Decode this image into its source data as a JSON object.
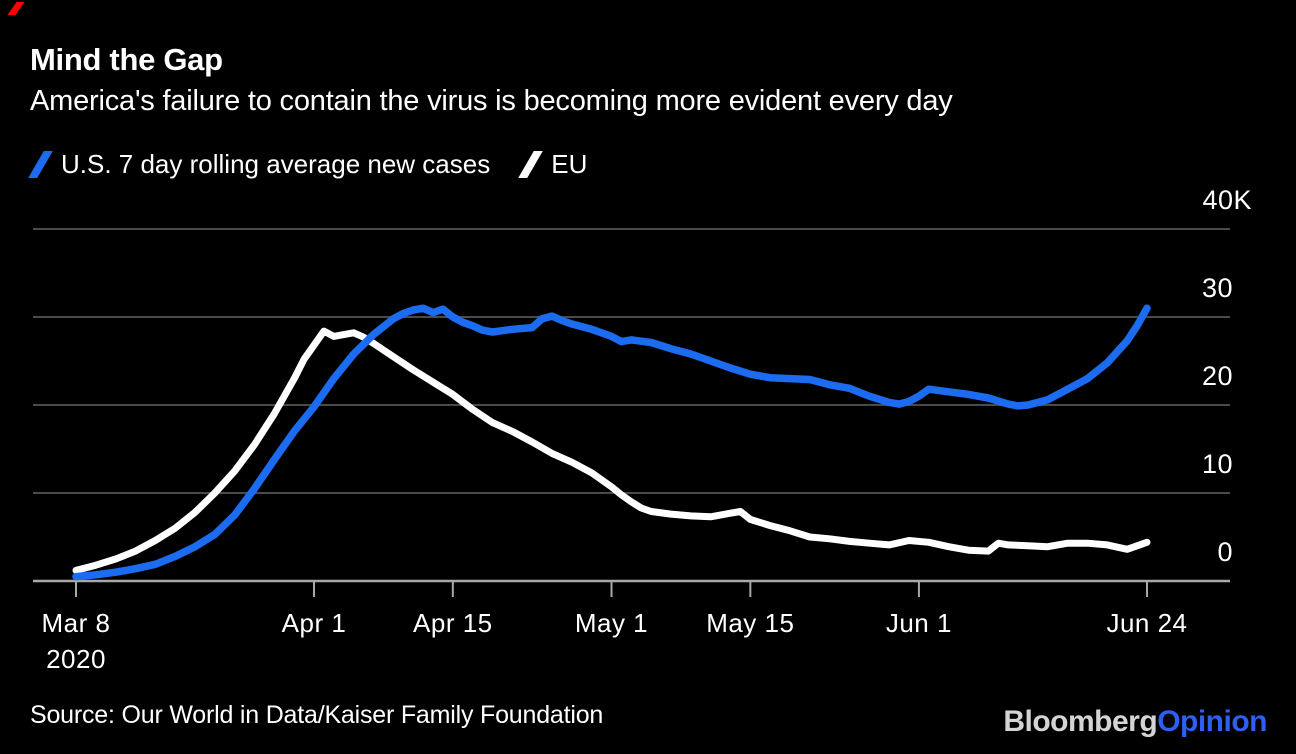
{
  "header": {
    "title": "Mind the Gap",
    "subtitle": "America's failure to contain the virus is becoming more evident every day"
  },
  "legend": {
    "us": {
      "label": "U.S. 7 day rolling average new cases",
      "color": "#1c6cf2"
    },
    "eu": {
      "label": "EU",
      "color": "#ffffff"
    }
  },
  "footer": {
    "source": "Source: Our World in Data/Kaiser Family Foundation",
    "brand": "Bloomberg",
    "brand_suffix": "Opinion"
  },
  "colors": {
    "background": "#000000",
    "text": "#ffffff",
    "us_line": "#1c6cf2",
    "eu_line": "#ffffff",
    "gridline": "#4a4a4a",
    "axis": "#a8a8a8",
    "brand_gray": "#d4d4d4",
    "brand_blue": "#2c5ff2",
    "accent_red": "#ff0000"
  },
  "chart_data": {
    "type": "line",
    "title": "Mind the Gap",
    "subtitle": "America's failure to contain the virus is becoming more evident every day",
    "x_unit": "days since Mar 8, 2020",
    "y_unit": "new cases, thousands",
    "ylim": [
      0,
      40
    ],
    "grid": true,
    "legend_position": "top-left",
    "y_ticks": [
      {
        "value": 40,
        "label": "40K"
      },
      {
        "value": 30,
        "label": "30"
      },
      {
        "value": 20,
        "label": "20"
      },
      {
        "value": 10,
        "label": "10"
      },
      {
        "value": 0,
        "label": "0"
      }
    ],
    "x_ticks": [
      {
        "day": 0,
        "label": "Mar 8",
        "sublabel": "2020"
      },
      {
        "day": 24,
        "label": "Apr 1"
      },
      {
        "day": 38,
        "label": "Apr 15"
      },
      {
        "day": 54,
        "label": "May 1"
      },
      {
        "day": 68,
        "label": "May 15"
      },
      {
        "day": 85,
        "label": "Jun 1"
      },
      {
        "day": 108,
        "label": "Jun 24"
      }
    ],
    "series": [
      {
        "name": "EU",
        "color": "#ffffff",
        "points": [
          [
            0,
            1.2
          ],
          [
            2,
            1.8
          ],
          [
            4,
            2.5
          ],
          [
            6,
            3.4
          ],
          [
            8,
            4.6
          ],
          [
            10,
            6.0
          ],
          [
            12,
            7.8
          ],
          [
            14,
            10.0
          ],
          [
            16,
            12.5
          ],
          [
            18,
            15.5
          ],
          [
            20,
            19.0
          ],
          [
            22,
            23.0
          ],
          [
            23,
            25.2
          ],
          [
            24,
            26.8
          ],
          [
            25,
            28.4
          ],
          [
            26,
            27.8
          ],
          [
            27,
            28.0
          ],
          [
            28,
            28.2
          ],
          [
            29,
            27.7
          ],
          [
            30,
            27.0
          ],
          [
            32,
            25.5
          ],
          [
            34,
            24.0
          ],
          [
            36,
            22.6
          ],
          [
            38,
            21.2
          ],
          [
            40,
            19.5
          ],
          [
            42,
            18.0
          ],
          [
            44,
            17.0
          ],
          [
            46,
            15.8
          ],
          [
            48,
            14.5
          ],
          [
            50,
            13.5
          ],
          [
            52,
            12.3
          ],
          [
            54,
            10.7
          ],
          [
            55,
            9.8
          ],
          [
            56,
            9.0
          ],
          [
            57,
            8.3
          ],
          [
            58,
            7.9
          ],
          [
            60,
            7.6
          ],
          [
            62,
            7.4
          ],
          [
            64,
            7.3
          ],
          [
            66,
            7.7
          ],
          [
            67,
            7.9
          ],
          [
            68,
            7.0
          ],
          [
            70,
            6.3
          ],
          [
            72,
            5.7
          ],
          [
            74,
            5.0
          ],
          [
            76,
            4.8
          ],
          [
            78,
            4.5
          ],
          [
            80,
            4.3
          ],
          [
            82,
            4.1
          ],
          [
            84,
            4.6
          ],
          [
            86,
            4.4
          ],
          [
            88,
            3.9
          ],
          [
            90,
            3.5
          ],
          [
            92,
            3.4
          ],
          [
            93,
            4.3
          ],
          [
            94,
            4.1
          ],
          [
            96,
            4.0
          ],
          [
            98,
            3.9
          ],
          [
            100,
            4.3
          ],
          [
            102,
            4.3
          ],
          [
            104,
            4.1
          ],
          [
            106,
            3.6
          ],
          [
            108,
            4.4
          ]
        ]
      },
      {
        "name": "U.S. 7 day rolling average new cases",
        "color": "#1c6cf2",
        "points": [
          [
            0,
            0.5
          ],
          [
            2,
            0.7
          ],
          [
            4,
            1.0
          ],
          [
            6,
            1.4
          ],
          [
            8,
            1.9
          ],
          [
            10,
            2.8
          ],
          [
            12,
            3.9
          ],
          [
            14,
            5.3
          ],
          [
            16,
            7.5
          ],
          [
            18,
            10.5
          ],
          [
            20,
            13.8
          ],
          [
            22,
            17.0
          ],
          [
            24,
            19.8
          ],
          [
            26,
            23.0
          ],
          [
            28,
            25.8
          ],
          [
            30,
            28.0
          ],
          [
            32,
            29.8
          ],
          [
            33,
            30.4
          ],
          [
            34,
            30.8
          ],
          [
            35,
            31.0
          ],
          [
            36,
            30.5
          ],
          [
            37,
            30.9
          ],
          [
            38,
            30.0
          ],
          [
            39,
            29.4
          ],
          [
            40,
            29.0
          ],
          [
            41,
            28.5
          ],
          [
            42,
            28.3
          ],
          [
            44,
            28.6
          ],
          [
            46,
            28.8
          ],
          [
            47,
            29.8
          ],
          [
            48,
            30.1
          ],
          [
            49,
            29.6
          ],
          [
            50,
            29.2
          ],
          [
            52,
            28.6
          ],
          [
            54,
            27.8
          ],
          [
            55,
            27.2
          ],
          [
            56,
            27.4
          ],
          [
            58,
            27.1
          ],
          [
            60,
            26.4
          ],
          [
            62,
            25.8
          ],
          [
            64,
            25.0
          ],
          [
            66,
            24.2
          ],
          [
            68,
            23.5
          ],
          [
            70,
            23.1
          ],
          [
            72,
            23.0
          ],
          [
            74,
            22.9
          ],
          [
            76,
            22.3
          ],
          [
            78,
            21.9
          ],
          [
            80,
            21.0
          ],
          [
            82,
            20.3
          ],
          [
            83,
            20.1
          ],
          [
            84,
            20.4
          ],
          [
            85,
            21.0
          ],
          [
            86,
            21.8
          ],
          [
            88,
            21.5
          ],
          [
            90,
            21.2
          ],
          [
            92,
            20.8
          ],
          [
            94,
            20.1
          ],
          [
            95,
            19.9
          ],
          [
            96,
            20.0
          ],
          [
            98,
            20.6
          ],
          [
            100,
            21.8
          ],
          [
            102,
            23.0
          ],
          [
            104,
            24.8
          ],
          [
            106,
            27.3
          ],
          [
            107,
            29.0
          ],
          [
            108,
            31.0
          ]
        ]
      }
    ]
  }
}
